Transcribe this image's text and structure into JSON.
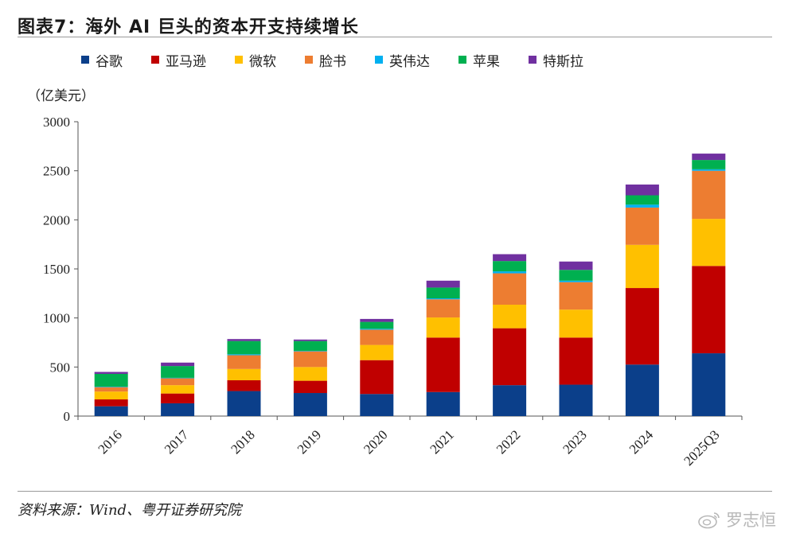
{
  "title": "图表7：海外 AI 巨头的资本开支持续增长",
  "unit_label": "（亿美元）",
  "source": "资料来源：Wind、粤开证券研究院",
  "watermark": "罗志恒",
  "chart_data": {
    "type": "bar",
    "stacked": true,
    "categories": [
      "2016",
      "2017",
      "2018",
      "2019",
      "2020",
      "2021",
      "2022",
      "2023",
      "2024",
      "2025Q3"
    ],
    "ylim": [
      0,
      3000
    ],
    "yticks": [
      0,
      500,
      1000,
      1500,
      2000,
      2500,
      3000
    ],
    "ylabel": "（亿美元）",
    "legend_position": "top",
    "grid": false,
    "series": [
      {
        "name": "谷歌",
        "color": "#0b3f8a",
        "values": [
          100,
          130,
          255,
          235,
          225,
          245,
          315,
          320,
          525,
          640
        ]
      },
      {
        "name": "亚马逊",
        "color": "#c00000",
        "values": [
          70,
          100,
          110,
          125,
          345,
          555,
          580,
          480,
          780,
          890
        ]
      },
      {
        "name": "微软",
        "color": "#ffc000",
        "values": [
          80,
          85,
          115,
          140,
          155,
          205,
          240,
          285,
          440,
          480
        ]
      },
      {
        "name": "脸书",
        "color": "#ed7d31",
        "values": [
          45,
          70,
          140,
          160,
          155,
          185,
          320,
          280,
          380,
          490
        ]
      },
      {
        "name": "英伟达",
        "color": "#00b0f0",
        "values": [
          5,
          5,
          10,
          5,
          10,
          10,
          20,
          15,
          30,
          15
        ]
      },
      {
        "name": "苹果",
        "color": "#00b050",
        "values": [
          130,
          120,
          135,
          100,
          70,
          110,
          105,
          110,
          95,
          95
        ]
      },
      {
        "name": "特斯拉",
        "color": "#7030a0",
        "values": [
          20,
          35,
          20,
          15,
          30,
          70,
          70,
          85,
          110,
          65
        ]
      }
    ]
  }
}
